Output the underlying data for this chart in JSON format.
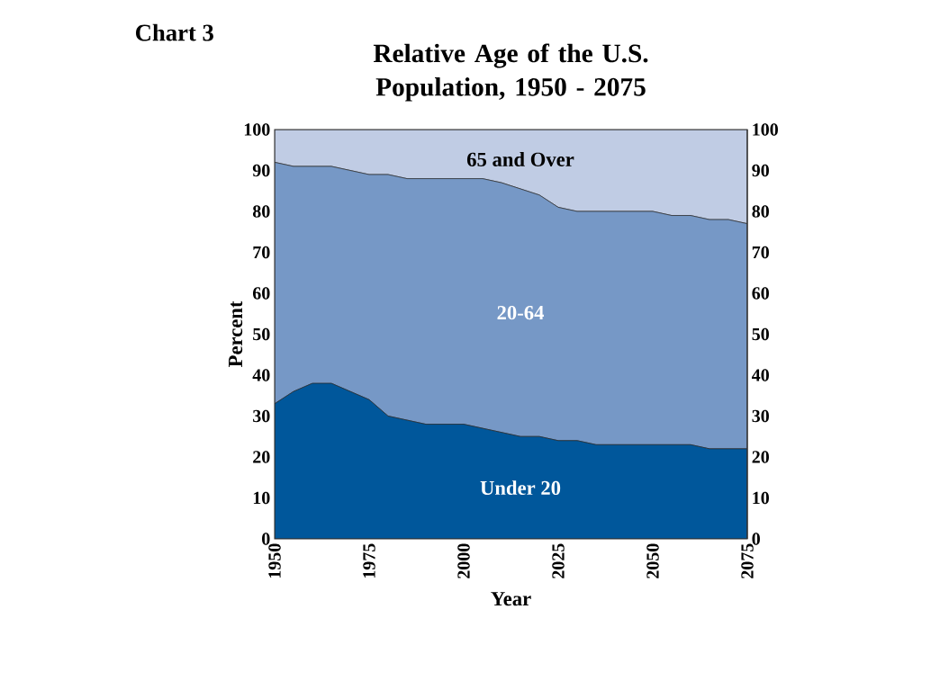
{
  "chart_data": {
    "type": "area",
    "title": "Relative Age of the U.S. Population, 1950 - 2075",
    "xlabel": "Year",
    "ylabel": "Percent",
    "annotations": [
      "Chart 3"
    ],
    "stacked": true,
    "legend": false,
    "grid": false,
    "x": [
      1950,
      1955,
      1960,
      1965,
      1970,
      1975,
      1980,
      1985,
      1990,
      1995,
      2000,
      2005,
      2010,
      2015,
      2020,
      2025,
      2030,
      2035,
      2040,
      2045,
      2050,
      2055,
      2060,
      2065,
      2070,
      2075
    ],
    "series": [
      {
        "name": "Under 20",
        "color": "#00579b",
        "values": [
          33,
          36,
          38,
          38,
          36,
          34,
          30,
          29,
          28,
          28,
          28,
          27,
          26,
          25,
          25,
          24,
          24,
          23,
          23,
          23,
          23,
          23,
          23,
          22,
          22,
          22
        ]
      },
      {
        "name": "20-64",
        "color": "#7698c6",
        "values": [
          59,
          55,
          53,
          53,
          54,
          55,
          59,
          59,
          60,
          60,
          60,
          61,
          61,
          60.5,
          59,
          57,
          56,
          57,
          57,
          57,
          57,
          56,
          56,
          56,
          56,
          55
        ]
      },
      {
        "name": "65 and Over",
        "color": "#c0cce4",
        "values": [
          8,
          9,
          9,
          9,
          10,
          11,
          11,
          12,
          12,
          12,
          12,
          12,
          13,
          14.5,
          16,
          19,
          20,
          20,
          20,
          20,
          20,
          21,
          21,
          22,
          22,
          23
        ]
      }
    ],
    "xlim": [
      1950,
      2075
    ],
    "xticks": [
      1950,
      1975,
      2000,
      2025,
      2050,
      2075
    ],
    "ylim": [
      0,
      100
    ],
    "yticks": [
      0,
      10,
      20,
      30,
      40,
      50,
      60,
      70,
      80,
      90,
      100
    ],
    "y2lim": [
      0,
      100
    ],
    "y2ticks": [
      0,
      10,
      20,
      30,
      40,
      50,
      60,
      70,
      80,
      90,
      100
    ]
  }
}
